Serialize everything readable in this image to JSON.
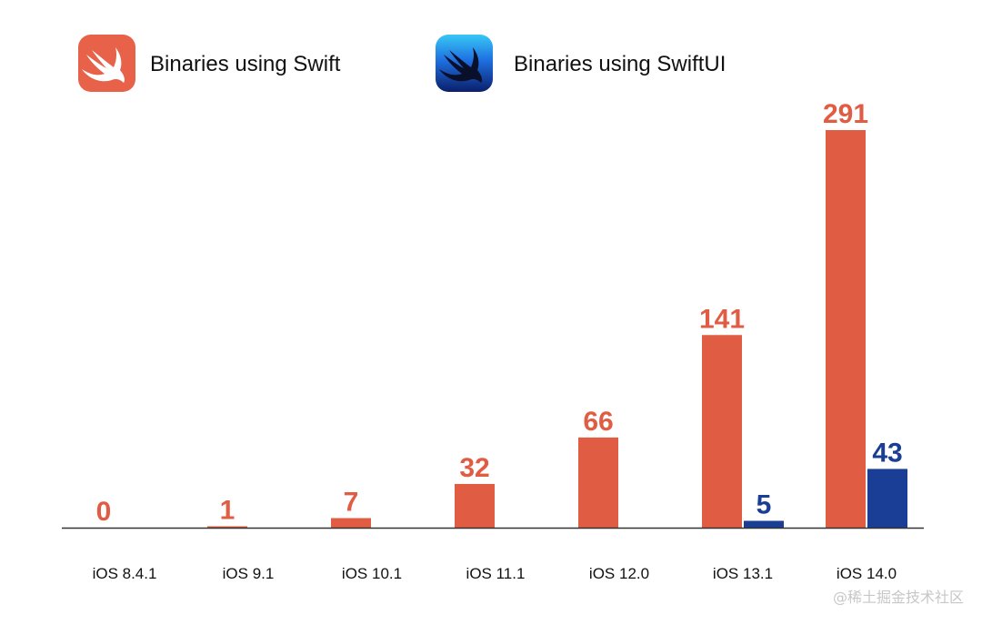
{
  "chart_data": {
    "type": "bar",
    "categories": [
      "iOS 8.4.1",
      "iOS 9.1",
      "iOS 10.1",
      "iOS 11.1",
      "iOS 12.0",
      "iOS 13.1",
      "iOS 14.0"
    ],
    "series": [
      {
        "name": "Binaries using Swift",
        "color": "#E05C43",
        "values": [
          0,
          1,
          7,
          32,
          66,
          141,
          291
        ]
      },
      {
        "name": "Binaries using SwiftUI",
        "color": "#1A3E96",
        "values": [
          null,
          null,
          null,
          null,
          null,
          5,
          43
        ]
      }
    ],
    "ylim": [
      0,
      291
    ],
    "grid": false,
    "legend_position": "top-left",
    "legend_icons": [
      "swift-logo-icon",
      "swiftui-logo-icon"
    ]
  },
  "watermark": "@稀土掘金技术社区"
}
